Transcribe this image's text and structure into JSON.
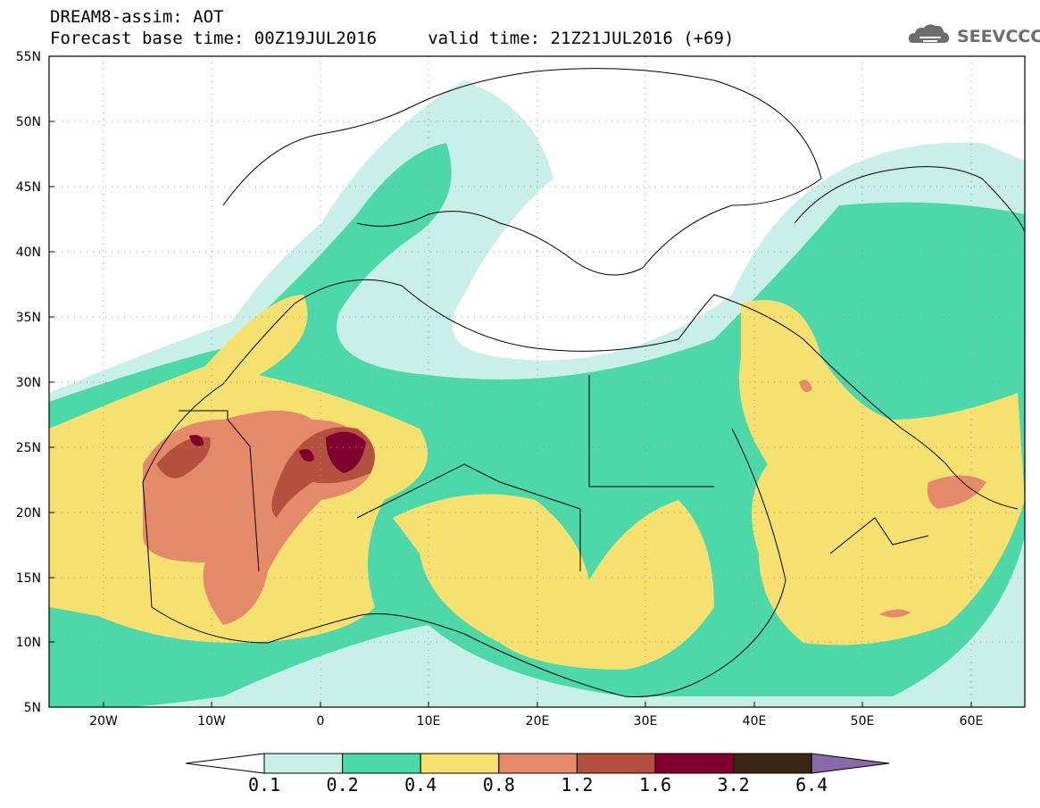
{
  "header": {
    "title_line1": "DREAM8-assim: AOT",
    "title_line2": "Forecast base time: 00Z19JUL2016     valid time: 21Z21JUL2016 (+69)"
  },
  "logo": {
    "text": "SEEVCCC",
    "icon": "cloud-icon"
  },
  "axes": {
    "lat_labels": [
      "55N",
      "50N",
      "45N",
      "40N",
      "35N",
      "30N",
      "25N",
      "20N",
      "15N",
      "10N",
      "5N"
    ],
    "lon_labels": [
      "20W",
      "10W",
      "0",
      "10E",
      "20E",
      "30E",
      "40E",
      "50E",
      "60E"
    ]
  },
  "legend": {
    "colors": [
      "#ffffff",
      "#c8f0e8",
      "#4cd8a8",
      "#f5e070",
      "#e58a68",
      "#b4503e",
      "#800030",
      "#3a2414",
      "#8a6aa8"
    ],
    "labels": [
      "0.1",
      "0.2",
      "0.4",
      "0.8",
      "1.2",
      "1.6",
      "3.2",
      "6.4"
    ]
  }
}
